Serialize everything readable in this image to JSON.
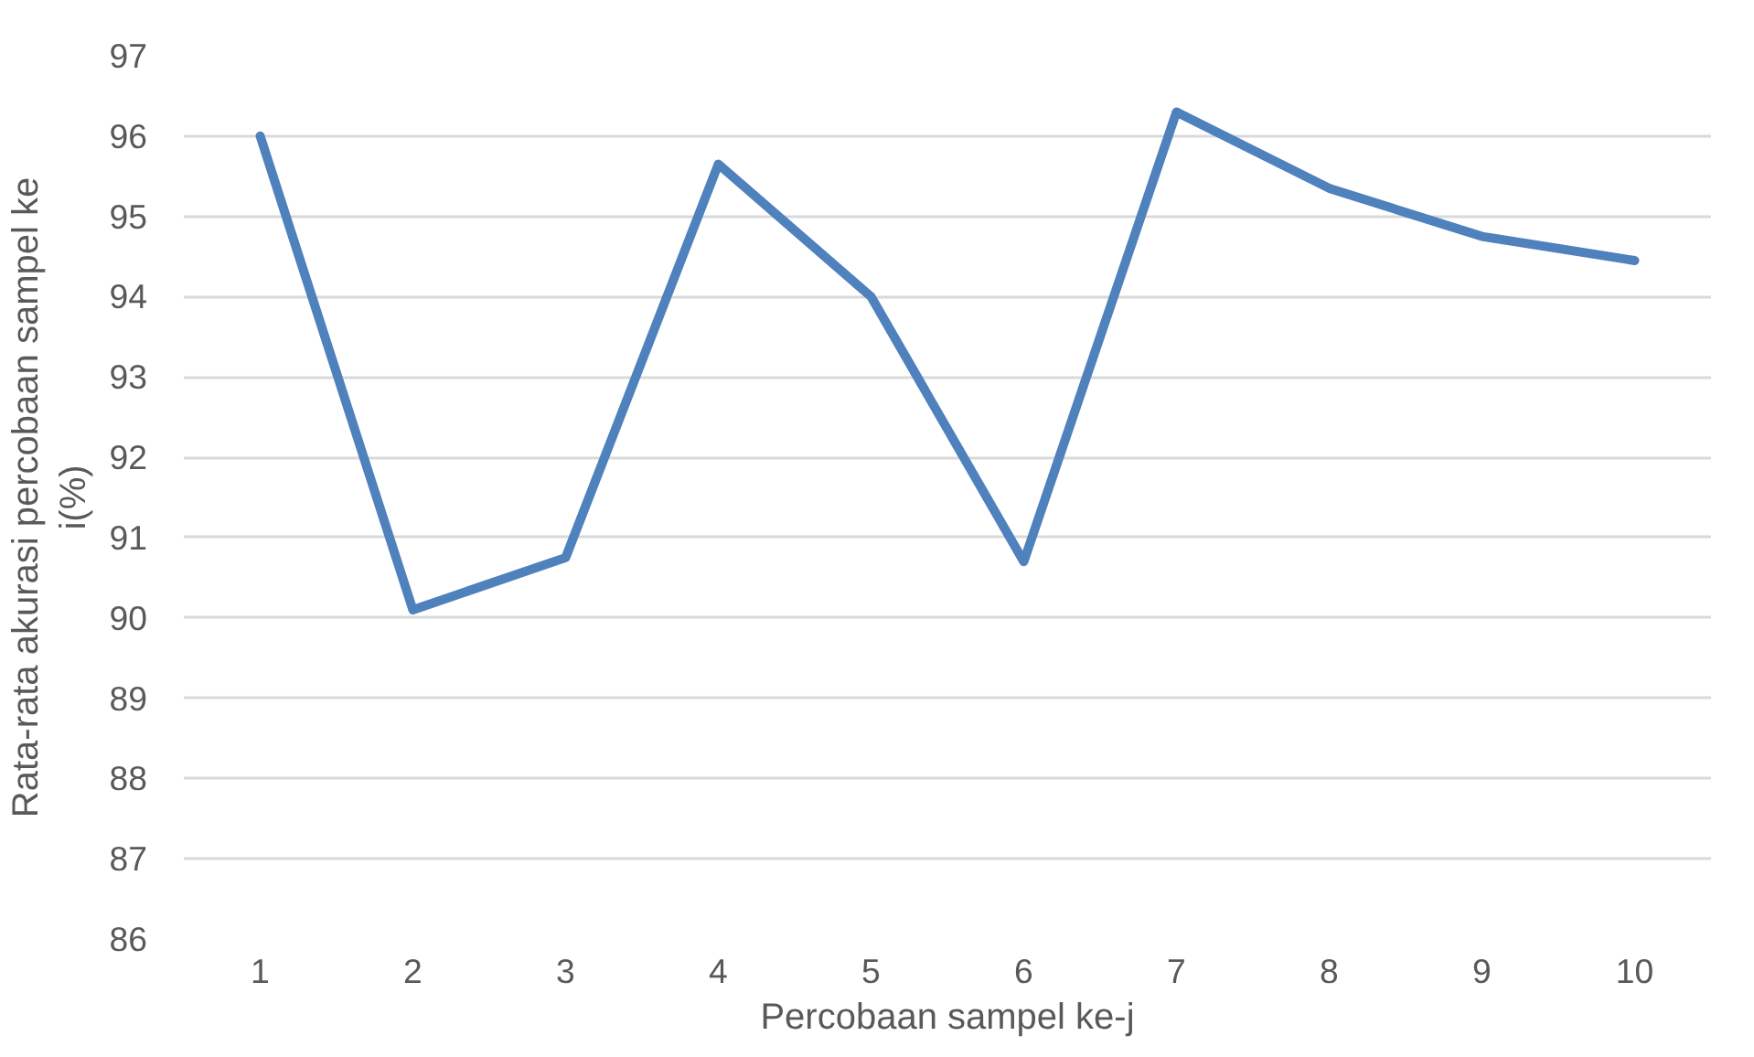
{
  "chart_data": {
    "type": "line",
    "categories": [
      "1",
      "2",
      "3",
      "4",
      "5",
      "6",
      "7",
      "8",
      "9",
      "10"
    ],
    "series": [
      {
        "color": "#4f81bd",
        "values": [
          96.0,
          90.1,
          90.75,
          95.65,
          94.0,
          90.7,
          96.3,
          95.35,
          94.75,
          94.45
        ]
      }
    ],
    "xlabel": "Percobaan sampel ke-j",
    "ylabel": "Rata-rata akurasi percobaan sampel ke i(%)",
    "ylim": [
      86,
      97
    ],
    "yticks": [
      86,
      87,
      88,
      89,
      90,
      91,
      92,
      93,
      94,
      95,
      96,
      97
    ],
    "grid": "y",
    "marker": "none",
    "line_style": "solid"
  }
}
